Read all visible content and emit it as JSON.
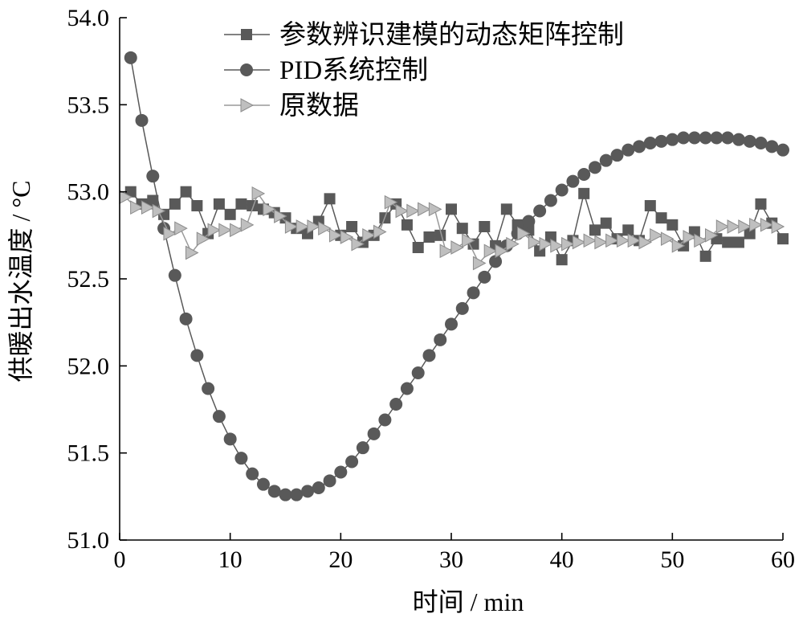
{
  "chart_data": {
    "type": "line",
    "xlabel": "时间 / min",
    "ylabel": "供暖出水温度 / °C",
    "xlim": [
      0,
      60
    ],
    "ylim": [
      51.0,
      54.0
    ],
    "xticks": [
      0,
      10,
      20,
      30,
      40,
      50,
      60
    ],
    "yticks": [
      51.0,
      51.5,
      52.0,
      52.5,
      53.0,
      53.5,
      54.0
    ],
    "grid": false,
    "legend_position": "top-right",
    "series": [
      {
        "name": "参数辨识建模的动态矩阵控制",
        "marker": "square",
        "color": "#595959",
        "x": [
          1,
          2,
          3,
          4,
          5,
          6,
          7,
          8,
          9,
          10,
          11,
          12,
          13,
          14,
          15,
          16,
          17,
          18,
          19,
          20,
          21,
          22,
          23,
          24,
          25,
          26,
          27,
          28,
          29,
          30,
          31,
          32,
          33,
          34,
          35,
          36,
          37,
          38,
          39,
          40,
          41,
          42,
          43,
          44,
          45,
          46,
          47,
          48,
          49,
          50,
          51,
          52,
          53,
          54,
          55,
          56,
          57,
          58,
          59,
          60
        ],
        "y": [
          53.0,
          52.93,
          52.95,
          52.87,
          52.93,
          53.0,
          52.92,
          52.76,
          52.93,
          52.87,
          52.93,
          52.92,
          52.9,
          52.88,
          52.85,
          52.79,
          52.76,
          52.83,
          52.96,
          52.75,
          52.8,
          52.71,
          52.75,
          52.85,
          52.93,
          52.81,
          52.68,
          52.74,
          52.75,
          52.9,
          52.79,
          52.7,
          52.8,
          52.69,
          52.9,
          52.81,
          52.78,
          52.66,
          52.74,
          52.61,
          52.72,
          52.99,
          52.78,
          52.82,
          52.73,
          52.78,
          52.72,
          52.92,
          52.85,
          52.81,
          52.69,
          52.77,
          52.63,
          52.73,
          52.71,
          52.71,
          52.76,
          52.93,
          52.82,
          52.73
        ]
      },
      {
        "name": "PID系统控制",
        "marker": "circle",
        "color": "#595959",
        "x": [
          1,
          2,
          3,
          4,
          5,
          6,
          7,
          8,
          9,
          10,
          11,
          12,
          13,
          14,
          15,
          16,
          17,
          18,
          19,
          20,
          21,
          22,
          23,
          24,
          25,
          26,
          27,
          28,
          29,
          30,
          31,
          32,
          33,
          34,
          35,
          36,
          37,
          38,
          39,
          40,
          41,
          42,
          43,
          44,
          45,
          46,
          47,
          48,
          49,
          50,
          51,
          52,
          53,
          54,
          55,
          56,
          57,
          58,
          59,
          60
        ],
        "y": [
          53.77,
          53.41,
          53.09,
          52.79,
          52.52,
          52.27,
          52.06,
          51.87,
          51.71,
          51.58,
          51.47,
          51.38,
          51.32,
          51.28,
          51.26,
          51.26,
          51.28,
          51.3,
          51.34,
          51.39,
          51.45,
          51.53,
          51.61,
          51.69,
          51.78,
          51.87,
          51.96,
          52.06,
          52.15,
          52.24,
          52.33,
          52.42,
          52.51,
          52.6,
          52.69,
          52.76,
          52.83,
          52.89,
          52.95,
          53.01,
          53.06,
          53.1,
          53.14,
          53.18,
          53.21,
          53.24,
          53.26,
          53.28,
          53.29,
          53.3,
          53.31,
          53.31,
          53.31,
          53.31,
          53.31,
          53.3,
          53.29,
          53.28,
          53.26,
          53.24
        ]
      },
      {
        "name": "原数据",
        "marker": "triangle-right",
        "color": "#bfbfbf",
        "x": [
          0.5,
          1.5,
          2.5,
          3.5,
          4.5,
          5.5,
          6.5,
          7.5,
          8.5,
          9.5,
          10.5,
          11.5,
          12.5,
          13.5,
          14.5,
          15.5,
          16.5,
          17.5,
          18.5,
          19.5,
          20.5,
          21.5,
          22.5,
          23.5,
          24.5,
          25.5,
          26.5,
          27.5,
          28.5,
          29.5,
          30.5,
          31.5,
          32.5,
          33.5,
          34.5,
          35.5,
          36.5,
          37.5,
          38.5,
          39.5,
          40.5,
          41.5,
          42.5,
          43.5,
          44.5,
          45.5,
          46.5,
          47.5,
          48.5,
          49.5,
          50.5,
          51.5,
          52.5,
          53.5,
          54.5,
          55.5,
          56.5,
          57.5,
          58.5,
          59.5
        ],
        "y": [
          52.97,
          52.91,
          52.91,
          52.89,
          52.76,
          52.79,
          52.65,
          52.73,
          52.78,
          52.78,
          52.78,
          52.81,
          52.99,
          52.9,
          52.86,
          52.8,
          52.8,
          52.8,
          52.79,
          52.75,
          52.74,
          52.7,
          52.75,
          52.77,
          52.94,
          52.89,
          52.89,
          52.9,
          52.9,
          52.66,
          52.68,
          52.72,
          52.59,
          52.66,
          52.66,
          52.7,
          52.76,
          52.71,
          52.7,
          52.69,
          52.7,
          52.71,
          52.72,
          52.71,
          52.72,
          52.72,
          52.72,
          52.71,
          52.75,
          52.73,
          52.69,
          52.74,
          52.72,
          52.75,
          52.8,
          52.8,
          52.8,
          52.81,
          52.81,
          52.8
        ]
      }
    ]
  }
}
